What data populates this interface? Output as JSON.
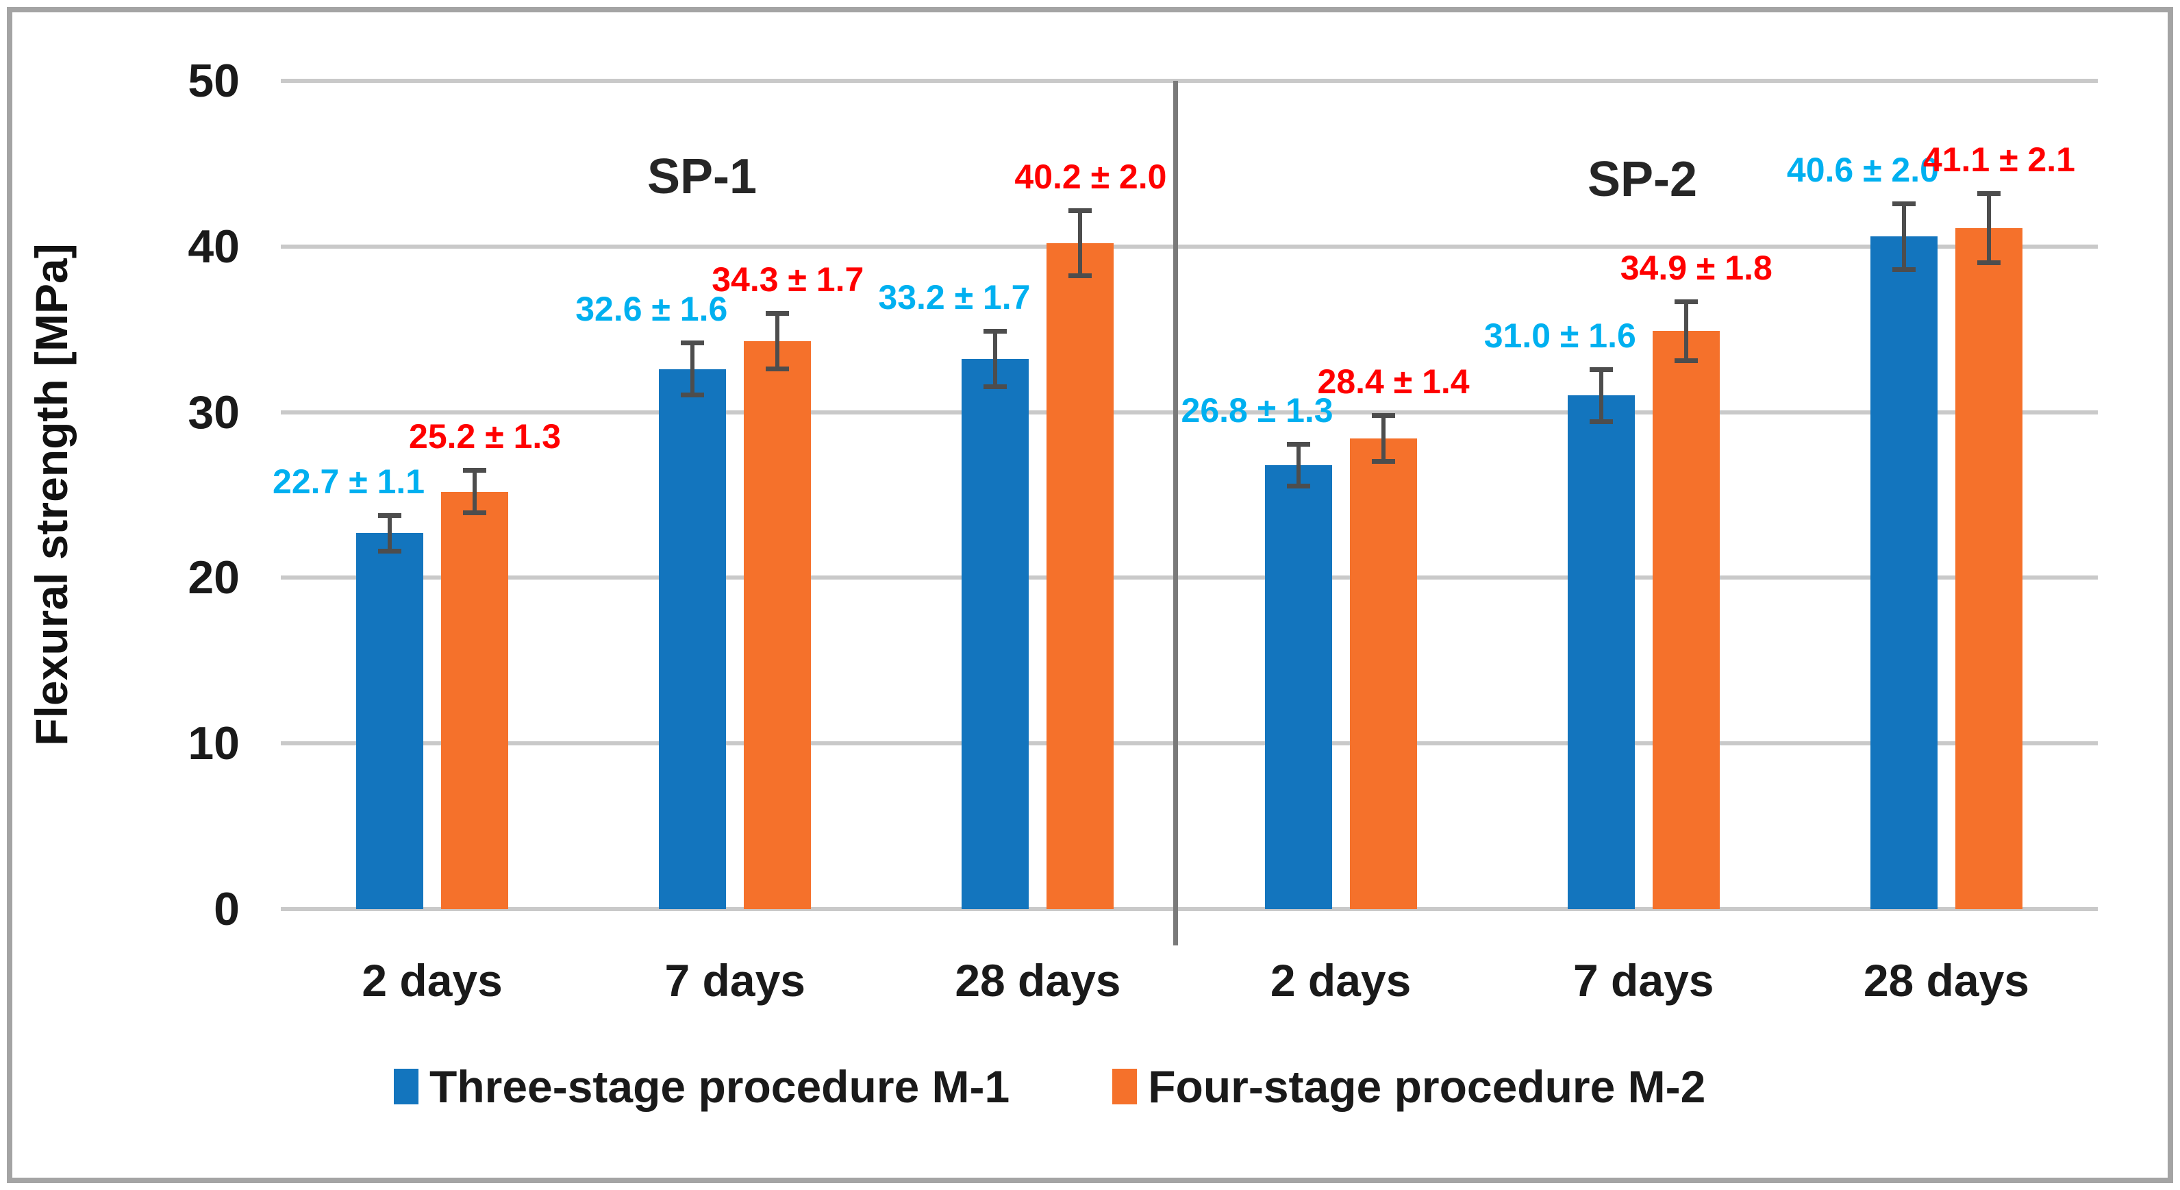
{
  "chart_data": {
    "type": "bar",
    "title": "",
    "ylabel": "Flexural strength [MPa]",
    "xlabel": "",
    "ylim": [
      0,
      50
    ],
    "yticks": [
      0,
      10,
      20,
      30,
      40,
      50
    ],
    "grid": "horizontal",
    "legend_position": "bottom",
    "group_labels": [
      "SP-1",
      "SP-2"
    ],
    "categories": [
      "2 days",
      "7 days",
      "28 days",
      "2 days",
      "7 days",
      "28 days"
    ],
    "error_bars": true,
    "series": [
      {
        "name": "Three-stage procedure M-1",
        "color": "#1375BE",
        "label_color": "#00B0F0",
        "values": [
          22.7,
          32.6,
          33.2,
          26.8,
          31.0,
          40.6
        ],
        "errors": [
          1.1,
          1.6,
          1.7,
          1.3,
          1.6,
          2.0
        ],
        "labels": [
          "22.7 ± 1.1",
          "32.6 ± 1.6",
          "33.2 ± 1.7",
          "26.8 ± 1.3",
          "31.0 ± 1.6",
          "40.6 ± 2.0"
        ]
      },
      {
        "name": "Four-stage procedure M-2",
        "color": "#F5712B",
        "label_color": "#FF0000",
        "values": [
          25.2,
          34.3,
          40.2,
          28.4,
          34.9,
          41.1
        ],
        "errors": [
          1.3,
          1.7,
          2.0,
          1.4,
          1.8,
          2.1
        ],
        "labels": [
          "25.2 ± 1.3",
          "34.3 ± 1.7",
          "40.2 ± 2.0",
          "28.4 ± 1.4",
          "34.9 ± 1.8",
          "41.1 ± 2.1"
        ]
      }
    ]
  }
}
